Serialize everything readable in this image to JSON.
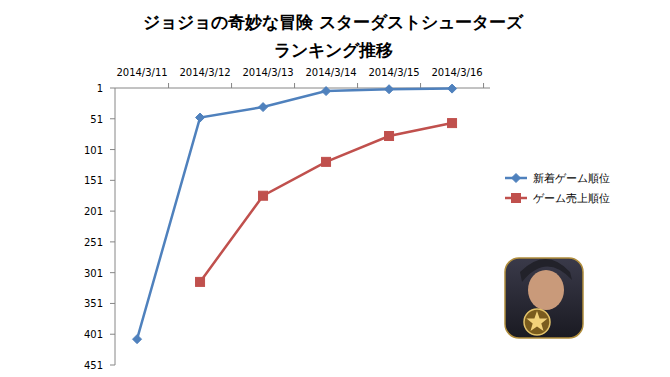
{
  "chart_data": {
    "type": "line",
    "title": "ジョジョの奇妙な冒険 スターダストシューターズ",
    "subtitle": "ランキング推移",
    "categories": [
      "2014/3/11",
      "2014/3/12",
      "2014/3/13",
      "2014/3/14",
      "2014/3/15",
      "2014/3/16"
    ],
    "series": [
      {
        "name": "新着ゲーム順位",
        "color": "#4f81bd",
        "marker": "diamond",
        "line_style": "solid",
        "values": [
          409,
          49,
          32,
          6,
          3,
          2
        ]
      },
      {
        "name": "ゲーム売上順位",
        "color": "#c0504d",
        "marker": "square",
        "line_style": "solid",
        "values": [
          null,
          316,
          176,
          121,
          79,
          58
        ]
      }
    ],
    "ylim": [
      451,
      1
    ],
    "yticks": [
      1,
      51,
      101,
      151,
      201,
      251,
      301,
      351,
      401,
      451
    ],
    "grid": false,
    "legend": "right"
  }
}
